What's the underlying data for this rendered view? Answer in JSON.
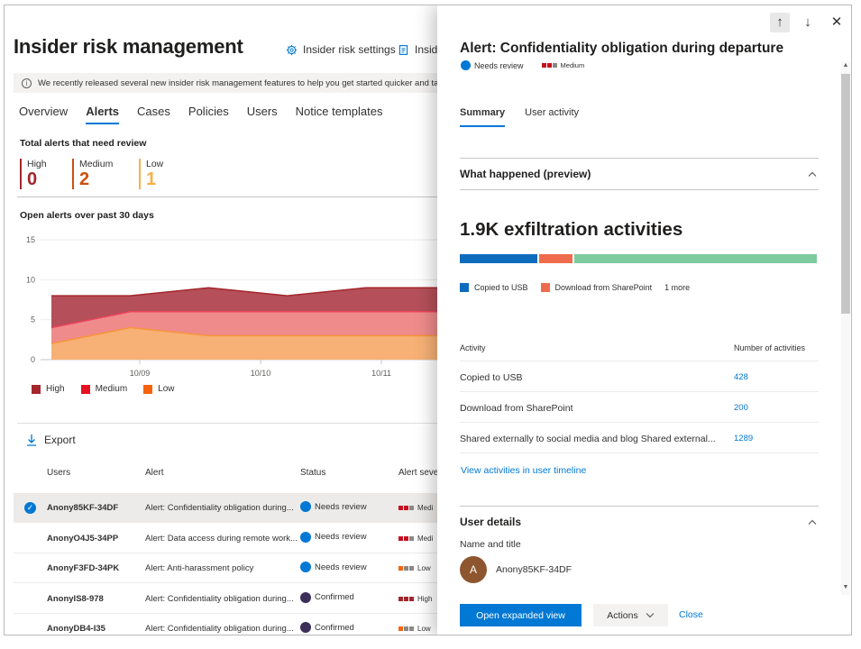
{
  "main": {
    "title": "Insider risk management",
    "header_links": [
      {
        "label": "Insider risk settings",
        "icon": "gear-icon"
      },
      {
        "label": "Insid",
        "icon": "document-icon"
      }
    ],
    "banner": "We recently released several new insider risk management features to help you get started quicker and take",
    "tabs": [
      "Overview",
      "Alerts",
      "Cases",
      "Policies",
      "Users",
      "Notice templates"
    ],
    "active_tab": "Alerts",
    "total_alerts_title": "Total alerts that need review",
    "severity_counts": [
      {
        "label": "High",
        "value": "0",
        "color": "#a4262c"
      },
      {
        "label": "Medium",
        "value": "2",
        "color": "#ca5010"
      },
      {
        "label": "Low",
        "value": "1",
        "color": "#f7b04a"
      }
    ],
    "open_alerts_title": "Open alerts over past 30 days",
    "export_label": "Export",
    "table": {
      "headers": [
        "Users",
        "Alert",
        "Status",
        "Alert seve"
      ],
      "rows": [
        {
          "user": "Anony85KF-34DF",
          "alert": "Alert: Confidentiality obligation during...",
          "status": "Needs review",
          "status_color": "#0078d4",
          "severity": "Medi",
          "sev_colors": [
            "#c50f1f",
            "#c50f1f",
            "#8a8886"
          ],
          "selected": true
        },
        {
          "user": "AnonyO4J5-34PP",
          "alert": "Alert: Data access during remote work...",
          "status": "Needs review",
          "status_color": "#0078d4",
          "severity": "Medi",
          "sev_colors": [
            "#c50f1f",
            "#c50f1f",
            "#8a8886"
          ],
          "selected": false
        },
        {
          "user": "AnonyF3FD-34PK",
          "alert": "Alert: Anti-harassment policy",
          "status": "Needs review",
          "status_color": "#0078d4",
          "severity": "Low",
          "sev_colors": [
            "#f7630c",
            "#8a8886",
            "#8a8886"
          ],
          "selected": false
        },
        {
          "user": "AnonyIS8-978",
          "alert": "Alert: Confidentiality obligation during...",
          "status": "Confirmed",
          "status_color": "#3b2e58",
          "severity": "High",
          "sev_colors": [
            "#a4262c",
            "#a4262c",
            "#a4262c"
          ],
          "selected": false
        },
        {
          "user": "AnonyDB4-I35",
          "alert": "Alert: Confidentiality obligation during...",
          "status": "Confirmed",
          "status_color": "#3b2e58",
          "severity": "Low",
          "sev_colors": [
            "#f7630c",
            "#8a8886",
            "#8a8886"
          ],
          "selected": false
        }
      ]
    }
  },
  "chart_data": {
    "type": "area",
    "title": "Open alerts over past 30 days",
    "x_ticks": [
      "10/09",
      "10/10",
      "10/11"
    ],
    "y_ticks": [
      0,
      5,
      10,
      15
    ],
    "ylim": [
      0,
      15
    ],
    "x": [
      0,
      1,
      2,
      3,
      4,
      5
    ],
    "series": [
      {
        "name": "High",
        "color": "#a4262c",
        "values": [
          8,
          8,
          9,
          8,
          9,
          9
        ]
      },
      {
        "name": "Medium",
        "color": "#e8435b",
        "values": [
          4,
          6,
          6,
          6,
          6,
          6
        ]
      },
      {
        "name": "Low",
        "color": "#f7953b",
        "values": [
          2,
          4,
          3,
          3,
          3,
          3
        ]
      }
    ],
    "grid": true,
    "legend_position": "bottom-left"
  },
  "panel": {
    "title": "Alert: Confidentiality obligation during departure",
    "status": "Needs review",
    "severity": "Medium",
    "severity_colors": [
      "#c50f1f",
      "#c50f1f",
      "#8a8886"
    ],
    "tabs": [
      "Summary",
      "User activity"
    ],
    "active_tab": "Summary",
    "what_happened": "What happened (preview)",
    "headline": "1.9K exfiltration activities",
    "activity_breakdown": [
      {
        "label": "Copied to USB",
        "fraction": 0.22,
        "color": "#0f6cbd"
      },
      {
        "label": "Download from SharePoint",
        "fraction": 0.1,
        "color": "#ee6c4d"
      },
      {
        "label": "Shared externally",
        "fraction": 0.68,
        "color": "#7dcb9f"
      }
    ],
    "legend_more": "1 more",
    "activity_headers": [
      "Activity",
      "Number of activities"
    ],
    "activities": [
      {
        "name": "Copied to USB",
        "count": "428"
      },
      {
        "name": "Download from SharePoint",
        "count": "200"
      },
      {
        "name": "Shared externally to social media and blog Shared external...",
        "count": "1289"
      }
    ],
    "timeline_link": "View activities in user timeline",
    "user_details": "User details",
    "name_title_label": "Name and title",
    "avatar_initial": "A",
    "user_name": "Anony85KF-34DF",
    "open_expanded": "Open expanded view",
    "actions": "Actions",
    "close": "Close"
  }
}
